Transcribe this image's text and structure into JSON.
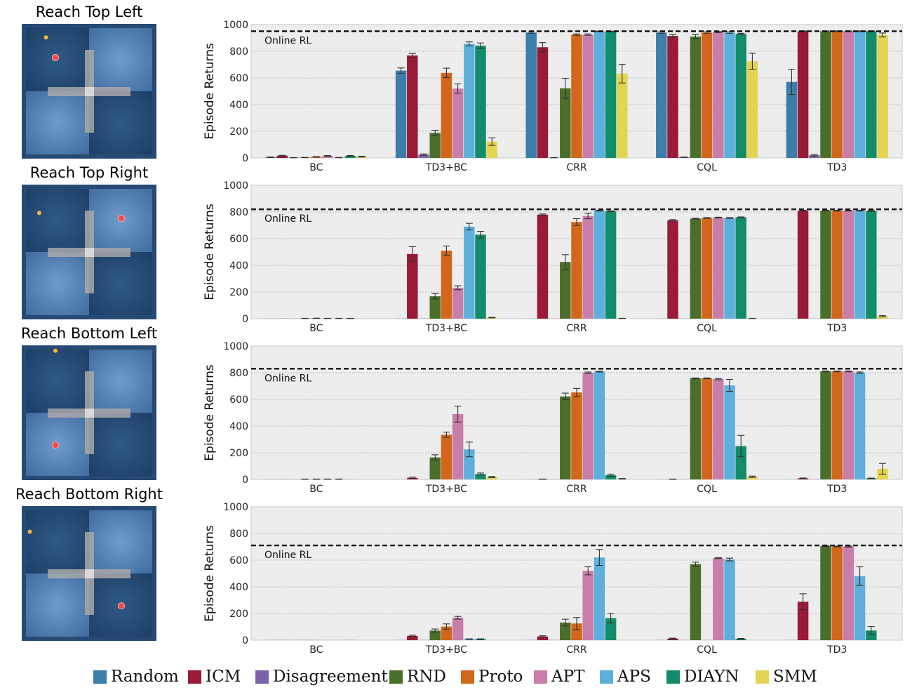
{
  "panels": [
    {
      "title": "Reach Top Left",
      "dots": {
        "small": [
          0.18,
          0.1
        ],
        "target": [
          0.25,
          0.25
        ]
      }
    },
    {
      "title": "Reach Top Right",
      "dots": {
        "small": [
          0.13,
          0.21
        ],
        "target": [
          0.74,
          0.25
        ]
      }
    },
    {
      "title": "Reach Bottom Left",
      "dots": {
        "small": [
          0.25,
          0.04
        ],
        "target": [
          0.25,
          0.74
        ]
      }
    },
    {
      "title": "Reach Bottom Right",
      "dots": {
        "small": [
          0.06,
          0.19
        ],
        "target": [
          0.74,
          0.74
        ]
      }
    }
  ],
  "legend": [
    {
      "name": "Random",
      "color": "#3b7eaa"
    },
    {
      "name": "ICM",
      "color": "#9a1a37"
    },
    {
      "name": "Disagreement",
      "color": "#7c63a9"
    },
    {
      "name": "RND",
      "color": "#4b6f2a"
    },
    {
      "name": "Proto",
      "color": "#d2671b"
    },
    {
      "name": "APT",
      "color": "#c87ea8"
    },
    {
      "name": "APS",
      "color": "#5eb0dc"
    },
    {
      "name": "DIAYN",
      "color": "#138c69"
    },
    {
      "name": "SMM",
      "color": "#e3d552"
    }
  ],
  "chart_data": [
    {
      "type": "bar",
      "ylabel": "Episode Returns",
      "ylim": [
        0,
        1000
      ],
      "yticks": [
        0,
        200,
        400,
        600,
        800,
        1000
      ],
      "categories": [
        "BC",
        "TD3+BC",
        "CRR",
        "CQL",
        "TD3"
      ],
      "online_rl": {
        "label": "Online RL",
        "value": 950
      },
      "series": [
        {
          "name": "Random",
          "values": [
            5,
            655,
            940,
            940,
            570
          ],
          "err": [
            2,
            20,
            5,
            5,
            95
          ]
        },
        {
          "name": "ICM",
          "values": [
            17,
            768,
            830,
            915,
            950
          ],
          "err": [
            3,
            15,
            35,
            10,
            3
          ]
        },
        {
          "name": "Disagreement",
          "values": [
            2,
            25,
            2,
            5,
            20
          ],
          "err": [
            1,
            5,
            1,
            2,
            5
          ]
        },
        {
          "name": "RND",
          "values": [
            3,
            188,
            522,
            910,
            950
          ],
          "err": [
            1,
            20,
            75,
            15,
            3
          ]
        },
        {
          "name": "Proto",
          "values": [
            8,
            638,
            925,
            940,
            950
          ],
          "err": [
            2,
            35,
            5,
            5,
            3
          ]
        },
        {
          "name": "APT",
          "values": [
            15,
            520,
            925,
            945,
            950
          ],
          "err": [
            3,
            35,
            5,
            5,
            3
          ]
        },
        {
          "name": "APS",
          "values": [
            3,
            855,
            948,
            940,
            950
          ],
          "err": [
            1,
            15,
            3,
            5,
            3
          ]
        },
        {
          "name": "DIAYN",
          "values": [
            15,
            842,
            948,
            930,
            950
          ],
          "err": [
            3,
            20,
            3,
            5,
            3
          ]
        },
        {
          "name": "SMM",
          "values": [
            10,
            122,
            632,
            725,
            922
          ],
          "err": [
            3,
            28,
            70,
            60,
            15
          ]
        }
      ]
    },
    {
      "type": "bar",
      "ylabel": "Episode Returns",
      "ylim": [
        0,
        1000
      ],
      "yticks": [
        0,
        200,
        400,
        600,
        800,
        1000
      ],
      "categories": [
        "BC",
        "TD3+BC",
        "CRR",
        "CQL",
        "TD3"
      ],
      "online_rl": {
        "label": "Online RL",
        "value": 820
      },
      "series": [
        {
          "name": "Random",
          "values": [
            1,
            1,
            1,
            1,
            1
          ],
          "err": [
            0,
            0,
            0,
            0,
            0
          ]
        },
        {
          "name": "ICM",
          "values": [
            1,
            485,
            780,
            738,
            810
          ],
          "err": [
            0,
            55,
            5,
            5,
            3
          ]
        },
        {
          "name": "Disagreement",
          "values": [
            1,
            1,
            1,
            1,
            1
          ],
          "err": [
            0,
            0,
            0,
            0,
            0
          ]
        },
        {
          "name": "RND",
          "values": [
            2,
            168,
            425,
            750,
            810
          ],
          "err": [
            1,
            20,
            55,
            3,
            3
          ]
        },
        {
          "name": "Proto",
          "values": [
            3,
            510,
            725,
            755,
            810
          ],
          "err": [
            1,
            35,
            25,
            3,
            3
          ]
        },
        {
          "name": "APT",
          "values": [
            2,
            232,
            770,
            758,
            810
          ],
          "err": [
            1,
            15,
            20,
            3,
            3
          ]
        },
        {
          "name": "APS",
          "values": [
            2,
            690,
            810,
            755,
            810
          ],
          "err": [
            1,
            25,
            3,
            3,
            3
          ]
        },
        {
          "name": "DIAYN",
          "values": [
            2,
            630,
            805,
            760,
            808
          ],
          "err": [
            1,
            25,
            3,
            3,
            3
          ]
        },
        {
          "name": "SMM",
          "values": [
            1,
            8,
            2,
            2,
            18
          ],
          "err": [
            0,
            2,
            1,
            1,
            5
          ]
        }
      ]
    },
    {
      "type": "bar",
      "ylabel": "Episode Returns",
      "ylim": [
        0,
        1000
      ],
      "yticks": [
        0,
        200,
        400,
        600,
        800,
        1000
      ],
      "categories": [
        "BC",
        "TD3+BC",
        "CRR",
        "CQL",
        "TD3"
      ],
      "online_rl": {
        "label": "Online RL",
        "value": 830
      },
      "series": [
        {
          "name": "Random",
          "values": [
            1,
            1,
            1,
            1,
            1
          ],
          "err": [
            0,
            0,
            0,
            0,
            0
          ]
        },
        {
          "name": "ICM",
          "values": [
            1,
            12,
            2,
            2,
            8
          ],
          "err": [
            0,
            5,
            1,
            1,
            3
          ]
        },
        {
          "name": "Disagreement",
          "values": [
            1,
            1,
            1,
            1,
            1
          ],
          "err": [
            0,
            0,
            0,
            0,
            0
          ]
        },
        {
          "name": "RND",
          "values": [
            2,
            165,
            622,
            758,
            810
          ],
          "err": [
            1,
            20,
            25,
            3,
            3
          ]
        },
        {
          "name": "Proto",
          "values": [
            2,
            335,
            652,
            758,
            810
          ],
          "err": [
            1,
            20,
            30,
            3,
            3
          ]
        },
        {
          "name": "APT",
          "values": [
            2,
            490,
            800,
            752,
            810
          ],
          "err": [
            1,
            60,
            5,
            5,
            3
          ]
        },
        {
          "name": "APS",
          "values": [
            2,
            225,
            808,
            705,
            800
          ],
          "err": [
            1,
            55,
            3,
            45,
            5
          ]
        },
        {
          "name": "DIAYN",
          "values": [
            1,
            40,
            32,
            250,
            8
          ],
          "err": [
            0,
            8,
            8,
            80,
            2
          ]
        },
        {
          "name": "SMM",
          "values": [
            1,
            18,
            5,
            20,
            80
          ],
          "err": [
            0,
            5,
            2,
            5,
            40
          ]
        }
      ]
    },
    {
      "type": "bar",
      "ylabel": "Episode Returns",
      "ylim": [
        0,
        1000
      ],
      "yticks": [
        0,
        200,
        400,
        600,
        800,
        1000
      ],
      "categories": [
        "BC",
        "TD3+BC",
        "CRR",
        "CQL",
        "TD3"
      ],
      "online_rl": {
        "label": "Online RL",
        "value": 710
      },
      "series": [
        {
          "name": "Random",
          "values": [
            1,
            1,
            1,
            1,
            1
          ],
          "err": [
            0,
            0,
            0,
            0,
            0
          ]
        },
        {
          "name": "ICM",
          "values": [
            1,
            32,
            28,
            12,
            288
          ],
          "err": [
            0,
            5,
            5,
            3,
            60
          ]
        },
        {
          "name": "Disagreement",
          "values": [
            1,
            1,
            1,
            1,
            1
          ],
          "err": [
            0,
            0,
            0,
            0,
            0
          ]
        },
        {
          "name": "RND",
          "values": [
            1,
            72,
            132,
            570,
            705
          ],
          "err": [
            0,
            12,
            25,
            15,
            3
          ]
        },
        {
          "name": "Proto",
          "values": [
            1,
            102,
            125,
            1,
            702
          ],
          "err": [
            0,
            20,
            45,
            0,
            3
          ]
        },
        {
          "name": "APT",
          "values": [
            1,
            168,
            520,
            615,
            702
          ],
          "err": [
            0,
            10,
            30,
            3,
            3
          ]
        },
        {
          "name": "APS",
          "values": [
            1,
            8,
            620,
            605,
            480
          ],
          "err": [
            0,
            2,
            60,
            10,
            70
          ]
        },
        {
          "name": "DIAYN",
          "values": [
            1,
            8,
            165,
            10,
            72
          ],
          "err": [
            0,
            2,
            35,
            3,
            30
          ]
        },
        {
          "name": "SMM",
          "values": [
            1,
            1,
            1,
            1,
            1
          ],
          "err": [
            0,
            0,
            0,
            0,
            0
          ]
        }
      ]
    }
  ]
}
